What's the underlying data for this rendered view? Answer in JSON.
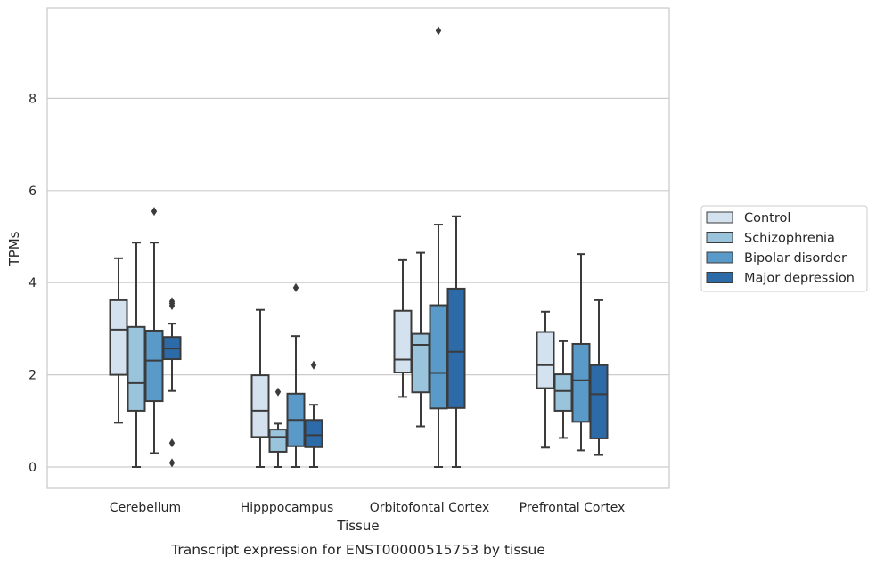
{
  "chart_data": {
    "type": "boxplot",
    "xlabel": "Tissue",
    "ylabel": "TPMs",
    "caption": "Transcript expression for ENST00000515753 by tissue",
    "ylim": [
      -0.45,
      9.9
    ],
    "yticks": [
      0,
      2,
      4,
      6,
      8
    ],
    "grid": "horizontal",
    "legend_position": "right",
    "categories": [
      "Cerebellum",
      "Hipppocampus",
      "Orbitofontal Cortex",
      "Prefrontal Cortex"
    ],
    "series": [
      {
        "name": "Control",
        "color": "#d4e2ef",
        "boxes": [
          {
            "whislo": 0.96,
            "q1": 2.0,
            "med": 2.98,
            "q3": 3.62,
            "whishi": 4.53,
            "fliers": []
          },
          {
            "whislo": 0.0,
            "q1": 0.65,
            "med": 1.22,
            "q3": 1.99,
            "whishi": 3.41,
            "fliers": []
          },
          {
            "whislo": 1.52,
            "q1": 2.05,
            "med": 2.33,
            "q3": 3.39,
            "whishi": 4.49,
            "fliers": []
          },
          {
            "whislo": 0.42,
            "q1": 1.71,
            "med": 2.21,
            "q3": 2.93,
            "whishi": 3.37,
            "fliers": []
          }
        ]
      },
      {
        "name": "Schizophrenia",
        "color": "#9ac4dc",
        "boxes": [
          {
            "whislo": 0.0,
            "q1": 1.22,
            "med": 1.82,
            "q3": 3.04,
            "whishi": 4.87,
            "fliers": []
          },
          {
            "whislo": 0.0,
            "q1": 0.33,
            "med": 0.65,
            "q3": 0.81,
            "whishi": 0.94,
            "fliers": [
              1.63
            ]
          },
          {
            "whislo": 0.88,
            "q1": 1.62,
            "med": 2.65,
            "q3": 2.89,
            "whishi": 4.65,
            "fliers": []
          },
          {
            "whislo": 0.63,
            "q1": 1.22,
            "med": 1.65,
            "q3": 2.01,
            "whishi": 2.73,
            "fliers": []
          }
        ]
      },
      {
        "name": "Bipolar disorder",
        "color": "#5a9ac9",
        "boxes": [
          {
            "whislo": 0.3,
            "q1": 1.43,
            "med": 2.31,
            "q3": 2.96,
            "whishi": 4.87,
            "fliers": [
              5.55
            ]
          },
          {
            "whislo": 0.0,
            "q1": 0.45,
            "med": 1.02,
            "q3": 1.59,
            "whishi": 2.84,
            "fliers": [
              3.89
            ]
          },
          {
            "whislo": 0.0,
            "q1": 1.27,
            "med": 2.04,
            "q3": 3.51,
            "whishi": 5.26,
            "fliers": [
              9.47
            ]
          },
          {
            "whislo": 0.36,
            "q1": 0.98,
            "med": 1.88,
            "q3": 2.67,
            "whishi": 4.62,
            "fliers": []
          }
        ]
      },
      {
        "name": "Major depression",
        "color": "#2c6aa8",
        "boxes": [
          {
            "whislo": 1.65,
            "q1": 2.34,
            "med": 2.57,
            "q3": 2.82,
            "whishi": 3.11,
            "fliers": [
              3.5,
              3.55,
              3.59,
              0.52,
              0.09
            ]
          },
          {
            "whislo": 0.0,
            "q1": 0.43,
            "med": 0.69,
            "q3": 1.02,
            "whishi": 1.35,
            "fliers": [
              2.21
            ]
          },
          {
            "whislo": 0.0,
            "q1": 1.28,
            "med": 2.5,
            "q3": 3.87,
            "whishi": 5.44,
            "fliers": []
          },
          {
            "whislo": 0.26,
            "q1": 0.62,
            "med": 1.58,
            "q3": 2.21,
            "whishi": 3.62,
            "fliers": []
          }
        ]
      }
    ]
  }
}
